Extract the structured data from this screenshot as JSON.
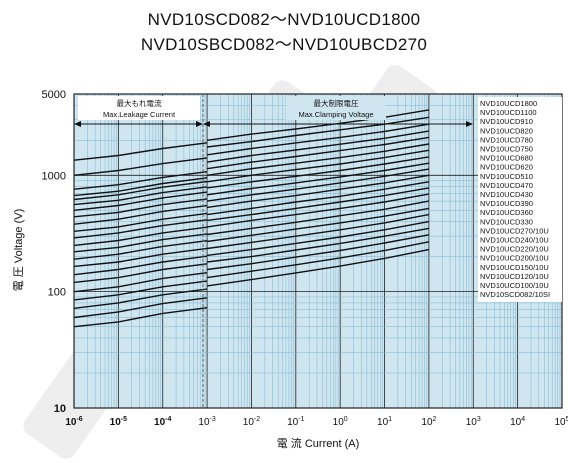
{
  "header": {
    "title_line1": "NVD10SCD082～NVD10UCD1800",
    "title_line2": "NVD10SBCD082～NVD10UBCD270"
  },
  "chart_data": {
    "type": "line",
    "title": "",
    "xlabel": "電 流 Current (A)",
    "ylabel": "電 圧 Voltage (V)",
    "x_scale": "log",
    "y_scale": "log",
    "xlim": [
      1e-06,
      100000.0
    ],
    "ylim": [
      10,
      5000
    ],
    "grid": true,
    "grid_color": "#7fb6cf",
    "background_color": "#cfe6f1",
    "line_color": "#111111",
    "x_ticks": [
      {
        "value": 1e-06,
        "label": "10-6"
      },
      {
        "value": 1e-05,
        "label": "10-5"
      },
      {
        "value": 0.0001,
        "label": "10-4"
      },
      {
        "value": 0.001,
        "label": "10-3"
      },
      {
        "value": 0.01,
        "label": "10-2"
      },
      {
        "value": 0.1,
        "label": "10-1"
      },
      {
        "value": 1,
        "label": "100"
      },
      {
        "value": 10,
        "label": "101"
      },
      {
        "value": 100,
        "label": "102"
      },
      {
        "value": 1000,
        "label": "103"
      },
      {
        "value": 10000,
        "label": "104"
      },
      {
        "value": 100000,
        "label": "105"
      }
    ],
    "y_ticks": [
      {
        "value": 10,
        "label": "10"
      },
      {
        "value": 100,
        "label": "100"
      },
      {
        "value": 1000,
        "label": "1000"
      },
      {
        "value": 5000,
        "label": "5000"
      }
    ],
    "regions": [
      {
        "name_jp": "最大もれ電流",
        "name_en": "Max.Leakage Current",
        "x_from": 1e-06,
        "x_to": 0.001
      },
      {
        "name_jp": "最大制限電圧",
        "name_en": "Max.Clamping Voltage",
        "x_from": 0.001,
        "x_to": 1000
      }
    ],
    "series_labels": [
      "NVD10UCD1800",
      "NVD10UCD1100",
      "NVD10UCD910",
      "NVD10UCD820",
      "NVD10UCD780",
      "NVD10UCD750",
      "NVD10UCD680",
      "NVD10UCD620",
      "NVD10UCD510",
      "NVD10UCD470",
      "NVD10UCD430",
      "NVD10UCD390",
      "NVD10UCD360",
      "NVD10UCD330",
      "NVD10UCD270/10U",
      "NVD10UCD240/10U",
      "NVD10UCD220/10U",
      "NVD10UCD200/10U",
      "NVD10UCD150/10U",
      "NVD10UCD120/10U",
      "NVD10UCD100/10U",
      "NVD10SCD082/10SI"
    ],
    "curves": [
      {
        "lk": [
          1350,
          1480,
          1700
        ],
        "cl": [
          2000,
          2260,
          2500,
          2800,
          3150,
          3650
        ]
      },
      {
        "lk": [
          1000,
          1100,
          1260
        ],
        "cl": [
          1750,
          1950,
          2200,
          2460,
          2750,
          3150
        ]
      },
      {
        "lk": [
          760,
          830,
          960
        ],
        "cl": [
          1500,
          1700,
          1900,
          2120,
          2380,
          2750
        ]
      },
      {
        "lk": [
          670,
          730,
          850
        ],
        "cl": [
          1300,
          1480,
          1650,
          1850,
          2080,
          2400
        ]
      },
      {
        "lk": [
          620,
          680,
          790
        ],
        "cl": [
          1140,
          1300,
          1450,
          1630,
          1840,
          2120
        ]
      },
      {
        "lk": [
          560,
          610,
          710
        ],
        "cl": [
          1000,
          1140,
          1270,
          1420,
          1610,
          1860
        ]
      },
      {
        "lk": [
          500,
          550,
          640
        ],
        "cl": [
          880,
          1000,
          1120,
          1250,
          1420,
          1640
        ]
      },
      {
        "lk": [
          440,
          480,
          560
        ],
        "cl": [
          780,
          880,
          980,
          1100,
          1250,
          1440
        ]
      },
      {
        "lk": [
          380,
          420,
          490
        ],
        "cl": [
          680,
          770,
          860,
          970,
          1100,
          1270
        ]
      },
      {
        "lk": [
          330,
          360,
          420
        ],
        "cl": [
          600,
          680,
          760,
          860,
          980,
          1130
        ]
      },
      {
        "lk": [
          290,
          320,
          370
        ],
        "cl": [
          530,
          600,
          670,
          760,
          860,
          1000
        ]
      },
      {
        "lk": [
          250,
          275,
          320
        ],
        "cl": [
          460,
          520,
          590,
          660,
          760,
          880
        ]
      },
      {
        "lk": [
          220,
          240,
          280
        ],
        "cl": [
          410,
          460,
          520,
          590,
          670,
          780
        ]
      },
      {
        "lk": [
          190,
          210,
          245
        ],
        "cl": [
          360,
          410,
          460,
          520,
          590,
          690
        ]
      },
      {
        "lk": [
          165,
          180,
          210
        ],
        "cl": [
          310,
          350,
          395,
          450,
          510,
          600
        ]
      },
      {
        "lk": [
          140,
          155,
          180
        ],
        "cl": [
          270,
          305,
          345,
          390,
          445,
          520
        ]
      },
      {
        "lk": [
          120,
          132,
          155
        ],
        "cl": [
          235,
          265,
          300,
          340,
          390,
          460
        ]
      },
      {
        "lk": [
          100,
          110,
          130
        ],
        "cl": [
          205,
          230,
          260,
          295,
          340,
          400
        ]
      },
      {
        "lk": [
          85,
          94,
          110
        ],
        "cl": [
          180,
          200,
          228,
          260,
          300,
          350
        ]
      },
      {
        "lk": [
          72,
          80,
          94
        ],
        "cl": [
          155,
          174,
          198,
          226,
          262,
          308
        ]
      },
      {
        "lk": [
          60,
          67,
          79
        ],
        "cl": [
          132,
          150,
          170,
          195,
          226,
          268
        ]
      },
      {
        "lk": [
          50,
          55,
          65
        ],
        "cl": [
          112,
          127,
          145,
          166,
          193,
          230
        ]
      }
    ]
  }
}
